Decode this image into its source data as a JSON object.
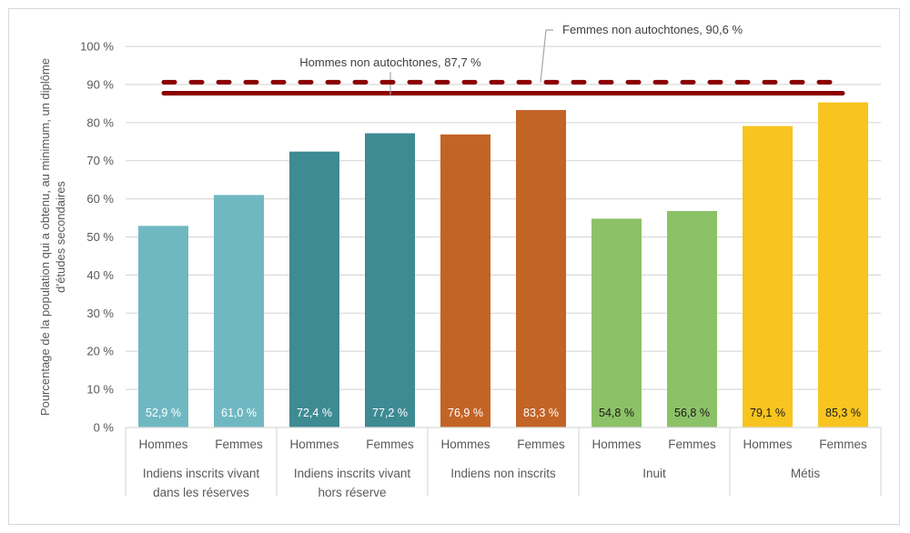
{
  "chart_data": {
    "type": "bar",
    "title": "",
    "ylabel": "Pourcentage de la population qui a obtenu, au minimum, un diplôme d’études secondaires",
    "xlabel": "",
    "ylim": [
      0,
      100
    ],
    "yticks": [
      0,
      10,
      20,
      30,
      40,
      50,
      60,
      70,
      80,
      90,
      100
    ],
    "ytick_labels": [
      "0 %",
      "10 %",
      "20 %",
      "30 %",
      "40 %",
      "50 %",
      "60 %",
      "70 %",
      "80 %",
      "90 %",
      "100 %"
    ],
    "grid": true,
    "groups": [
      {
        "name": "Indiens inscrits vivant dans les réserves",
        "lines": [
          "Indiens inscrits vivant",
          "dans les réserves"
        ],
        "color": "#6fb8c2",
        "label_color": "#ffffff"
      },
      {
        "name": "Indiens inscrits vivant hors réserve",
        "lines": [
          "Indiens inscrits vivant",
          "hors réserve"
        ],
        "color": "#3e8b93",
        "label_color": "#ffffff"
      },
      {
        "name": "Indiens non inscrits",
        "lines": [
          "Indiens non inscrits"
        ],
        "color": "#c36427",
        "label_color": "#ffffff"
      },
      {
        "name": "Inuit",
        "lines": [
          "Inuit"
        ],
        "color": "#8cc267",
        "label_color": "#1a1a1a"
      },
      {
        "name": "Métis",
        "lines": [
          "Métis"
        ],
        "color": "#f8c41f",
        "label_color": "#1a1a1a"
      }
    ],
    "subcategories": [
      "Hommes",
      "Femmes"
    ],
    "values": [
      [
        52.9,
        61.0
      ],
      [
        72.4,
        77.2
      ],
      [
        76.9,
        83.3
      ],
      [
        54.8,
        56.8
      ],
      [
        79.1,
        85.3
      ]
    ],
    "value_labels": [
      [
        "52,9 %",
        "61,0 %"
      ],
      [
        "72,4 %",
        "77,2 %"
      ],
      [
        "76,9 %",
        "83,3 %"
      ],
      [
        "54,8 %",
        "56,8 %"
      ],
      [
        "79,1 %",
        "85,3 %"
      ]
    ],
    "reference_lines": [
      {
        "name": "Hommes non autochtones",
        "value": 87.7,
        "label": "Hommes non autochtones, 87,7 %",
        "style": "solid",
        "color": "#8b0000"
      },
      {
        "name": "Femmes non autochtones",
        "value": 90.6,
        "label": "Femmes non autochtones, 90,6 %",
        "style": "dashed",
        "color": "#8b0000"
      }
    ]
  }
}
